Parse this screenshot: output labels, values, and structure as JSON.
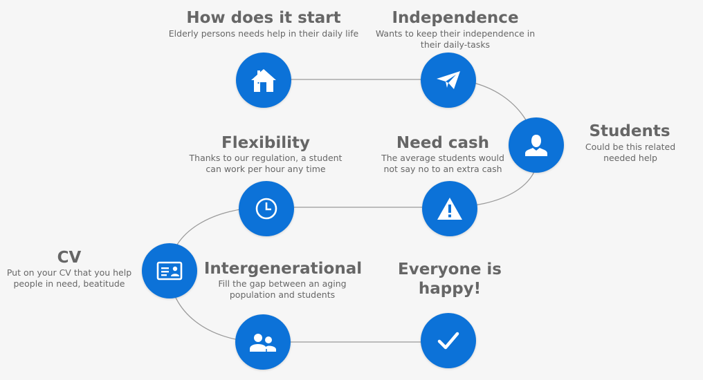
{
  "colors": {
    "node": "#0c72d8",
    "line": "#9a9a9a",
    "text": "#666666",
    "background": "#f6f6f6"
  },
  "steps": [
    {
      "id": "start",
      "icon": "home-icon",
      "title": "How does it start",
      "desc": "Elderly persons needs help in their daily life"
    },
    {
      "id": "independence",
      "icon": "paper-plane-icon",
      "title": "Independence",
      "desc": "Wants to keep their independence in their daily-tasks"
    },
    {
      "id": "students",
      "icon": "user-icon",
      "title": "Students",
      "desc": "Could be this related needed help"
    },
    {
      "id": "cash",
      "icon": "warning-icon",
      "title": "Need cash",
      "desc": "The average students would not say no to an extra cash"
    },
    {
      "id": "flexibility",
      "icon": "clock-icon",
      "title": "Flexibility",
      "desc": "Thanks to our regulation, a student can work per hour any time"
    },
    {
      "id": "cv",
      "icon": "id-card-icon",
      "title": "CV",
      "desc": "Put on your CV that you help people in need, beatitude"
    },
    {
      "id": "intergenerational",
      "icon": "group-icon",
      "title": "Intergenerational",
      "desc": "Fill the gap between an aging population and students"
    },
    {
      "id": "happy",
      "icon": "checkmark-icon",
      "title": "Everyone is happy!",
      "desc": ""
    }
  ]
}
